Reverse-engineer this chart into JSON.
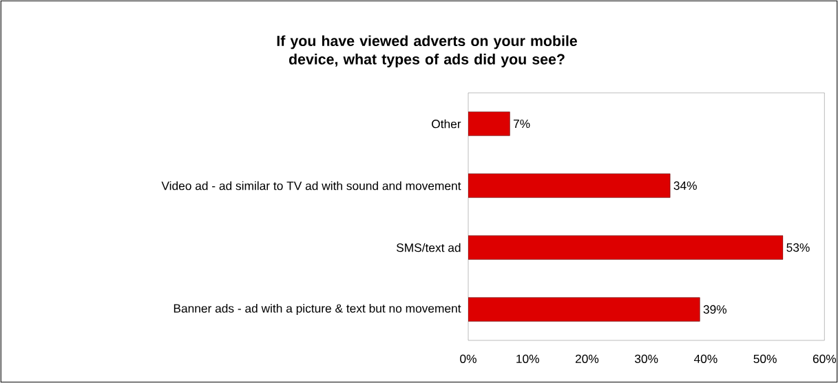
{
  "chart_data": {
    "type": "bar",
    "orientation": "horizontal",
    "title": "If you have viewed adverts on your mobile device, what types of ads did you see?",
    "categories": [
      "Other",
      "Video ad - ad similar to TV ad with sound and movement",
      "SMS/text ad",
      "Banner ads - ad with a picture & text but no movement"
    ],
    "values": [
      7,
      34,
      53,
      39
    ],
    "value_labels": [
      "7%",
      "34%",
      "53%",
      "39%"
    ],
    "color": "#dd0000",
    "xlim": [
      0,
      60
    ],
    "xticks": [
      {
        "value": 0,
        "label": "0%"
      },
      {
        "value": 10,
        "label": "10%"
      },
      {
        "value": 20,
        "label": "20%"
      },
      {
        "value": 30,
        "label": "30%"
      },
      {
        "value": 40,
        "label": "40%"
      },
      {
        "value": 50,
        "label": "50%"
      },
      {
        "value": 60,
        "label": "60%"
      }
    ],
    "grid": false
  }
}
